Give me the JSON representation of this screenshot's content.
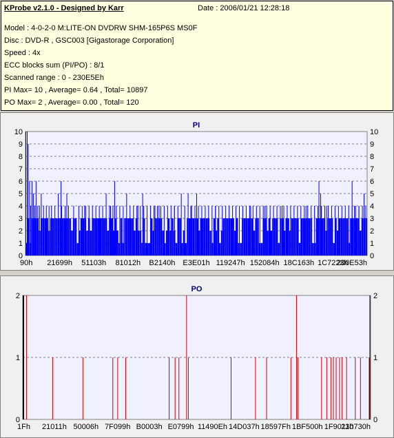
{
  "app_title": "KProbe v2.1.0 - Designed by Karr",
  "date": "Date : 2006/01/21 12:28:18",
  "info_lines": [
    "Model : 4-0-2-0 M:LITE-ON DVDRW SHM-165P6S MS0F",
    "Disc : DVD-R , GSC003 [Gigastorage Corporation]",
    "Speed : 4x",
    "ECC blocks sum (PI/PO) : 8/1",
    "Scanned range : 0 - 230E5Eh",
    "PI Max= 10 , Average= 0.64 , Total= 10897",
    "PO Max= 2 , Average= 0.00 , Total= 120"
  ],
  "colors": {
    "pi_bar": "#0000ff",
    "po_bar": "#cc0000",
    "plot_bg": "#f0f0ff",
    "title": "#000080"
  },
  "chart_data": [
    {
      "type": "bar",
      "title": "PI",
      "ylim": [
        0,
        10
      ],
      "yticks": [
        0,
        1,
        2,
        3,
        4,
        5,
        6,
        7,
        8,
        9,
        10
      ],
      "xtick_labels": [
        "90h",
        "21699h",
        "51103h",
        "81012h",
        "B2140h",
        "E3E01h",
        "119247h",
        "152084h",
        "18C163h",
        "1C7223h",
        "200E53h"
      ],
      "baseline_level": 3,
      "bars": [
        {
          "x": 0.0,
          "y": 10
        },
        {
          "x": 0.004,
          "y": 10
        },
        {
          "x": 0.007,
          "y": 9
        },
        {
          "x": 0.011,
          "y": 6
        },
        {
          "x": 0.014,
          "y": 4
        },
        {
          "x": 0.018,
          "y": 6
        },
        {
          "x": 0.022,
          "y": 5
        },
        {
          "x": 0.026,
          "y": 4
        },
        {
          "x": 0.03,
          "y": 6
        },
        {
          "x": 0.035,
          "y": 4
        },
        {
          "x": 0.04,
          "y": 4
        },
        {
          "x": 0.045,
          "y": 5
        },
        {
          "x": 0.052,
          "y": 4
        },
        {
          "x": 0.06,
          "y": 4
        },
        {
          "x": 0.068,
          "y": 4
        },
        {
          "x": 0.075,
          "y": 4
        },
        {
          "x": 0.085,
          "y": 4
        },
        {
          "x": 0.095,
          "y": 5
        },
        {
          "x": 0.105,
          "y": 4
        },
        {
          "x": 0.115,
          "y": 4
        },
        {
          "x": 0.125,
          "y": 4
        },
        {
          "x": 0.14,
          "y": 4
        },
        {
          "x": 0.155,
          "y": 4
        },
        {
          "x": 0.165,
          "y": 4
        },
        {
          "x": 0.175,
          "y": 4
        },
        {
          "x": 0.185,
          "y": 4
        },
        {
          "x": 0.195,
          "y": 4
        },
        {
          "x": 0.205,
          "y": 4
        },
        {
          "x": 0.215,
          "y": 4
        },
        {
          "x": 0.225,
          "y": 4
        },
        {
          "x": 0.235,
          "y": 5
        },
        {
          "x": 0.245,
          "y": 4
        },
        {
          "x": 0.255,
          "y": 4
        },
        {
          "x": 0.265,
          "y": 4
        },
        {
          "x": 0.275,
          "y": 4
        },
        {
          "x": 0.285,
          "y": 4
        },
        {
          "x": 0.295,
          "y": 5
        },
        {
          "x": 0.305,
          "y": 4
        },
        {
          "x": 0.315,
          "y": 4
        },
        {
          "x": 0.325,
          "y": 4
        },
        {
          "x": 0.335,
          "y": 4
        },
        {
          "x": 0.345,
          "y": 4
        },
        {
          "x": 0.355,
          "y": 4
        },
        {
          "x": 0.365,
          "y": 4
        },
        {
          "x": 0.375,
          "y": 4
        },
        {
          "x": 0.385,
          "y": 4
        },
        {
          "x": 0.395,
          "y": 4
        },
        {
          "x": 0.405,
          "y": 4
        },
        {
          "x": 0.415,
          "y": 4
        },
        {
          "x": 0.425,
          "y": 4
        },
        {
          "x": 0.435,
          "y": 4
        },
        {
          "x": 0.445,
          "y": 4
        },
        {
          "x": 0.455,
          "y": 5
        },
        {
          "x": 0.465,
          "y": 4
        },
        {
          "x": 0.475,
          "y": 5
        },
        {
          "x": 0.485,
          "y": 4
        },
        {
          "x": 0.495,
          "y": 4
        },
        {
          "x": 0.505,
          "y": 4
        },
        {
          "x": 0.515,
          "y": 4
        },
        {
          "x": 0.525,
          "y": 4
        },
        {
          "x": 0.535,
          "y": 4
        },
        {
          "x": 0.545,
          "y": 4
        },
        {
          "x": 0.555,
          "y": 4
        },
        {
          "x": 0.565,
          "y": 4
        },
        {
          "x": 0.575,
          "y": 4
        },
        {
          "x": 0.585,
          "y": 4
        },
        {
          "x": 0.595,
          "y": 4
        },
        {
          "x": 0.605,
          "y": 4
        },
        {
          "x": 0.615,
          "y": 4
        },
        {
          "x": 0.625,
          "y": 4
        },
        {
          "x": 0.635,
          "y": 4
        },
        {
          "x": 0.645,
          "y": 4
        },
        {
          "x": 0.655,
          "y": 4
        },
        {
          "x": 0.665,
          "y": 4
        },
        {
          "x": 0.675,
          "y": 4
        },
        {
          "x": 0.685,
          "y": 4
        },
        {
          "x": 0.695,
          "y": 4
        },
        {
          "x": 0.705,
          "y": 4
        },
        {
          "x": 0.715,
          "y": 4
        },
        {
          "x": 0.725,
          "y": 4
        },
        {
          "x": 0.735,
          "y": 4
        },
        {
          "x": 0.745,
          "y": 4
        },
        {
          "x": 0.755,
          "y": 4
        },
        {
          "x": 0.765,
          "y": 4
        },
        {
          "x": 0.775,
          "y": 4
        },
        {
          "x": 0.785,
          "y": 4
        },
        {
          "x": 0.795,
          "y": 4
        },
        {
          "x": 0.805,
          "y": 4
        },
        {
          "x": 0.815,
          "y": 4
        },
        {
          "x": 0.825,
          "y": 4
        },
        {
          "x": 0.835,
          "y": 4
        },
        {
          "x": 0.845,
          "y": 4
        },
        {
          "x": 0.855,
          "y": 4
        },
        {
          "x": 0.865,
          "y": 4
        },
        {
          "x": 0.875,
          "y": 4
        },
        {
          "x": 0.885,
          "y": 4
        },
        {
          "x": 0.895,
          "y": 4
        },
        {
          "x": 0.905,
          "y": 4
        },
        {
          "x": 0.915,
          "y": 4
        },
        {
          "x": 0.925,
          "y": 4
        },
        {
          "x": 0.935,
          "y": 4
        },
        {
          "x": 0.945,
          "y": 4
        },
        {
          "x": 0.955,
          "y": 4
        },
        {
          "x": 0.965,
          "y": 4
        },
        {
          "x": 0.975,
          "y": 4
        },
        {
          "x": 0.985,
          "y": 4
        },
        {
          "x": 0.995,
          "y": 4
        },
        {
          "x": 0.12,
          "y": 5
        },
        {
          "x": 0.172,
          "y": 4
        },
        {
          "x": 0.248,
          "y": 4
        },
        {
          "x": 0.328,
          "y": 4
        },
        {
          "x": 0.378,
          "y": 4
        },
        {
          "x": 0.39,
          "y": 4
        },
        {
          "x": 0.435,
          "y": 4
        },
        {
          "x": 0.5,
          "y": 5
        },
        {
          "x": 0.555,
          "y": 4
        },
        {
          "x": 0.658,
          "y": 4
        },
        {
          "x": 0.7,
          "y": 4
        },
        {
          "x": 0.75,
          "y": 4
        },
        {
          "x": 0.82,
          "y": 4
        },
        {
          "x": 0.858,
          "y": 6
        },
        {
          "x": 0.863,
          "y": 5
        },
        {
          "x": 0.88,
          "y": 4
        },
        {
          "x": 0.955,
          "y": 6
        },
        {
          "x": 0.962,
          "y": 4
        },
        {
          "x": 0.975,
          "y": 4
        },
        {
          "x": 0.99,
          "y": 5
        },
        {
          "x": 0.103,
          "y": 6
        },
        {
          "x": 0.26,
          "y": 6
        },
        {
          "x": 0.342,
          "y": 5
        },
        {
          "x": 0.483,
          "y": 4
        }
      ]
    },
    {
      "type": "bar",
      "title": "PO",
      "ylim": [
        0,
        2
      ],
      "yticks": [
        0,
        1,
        2
      ],
      "xtick_labels": [
        "1Fh",
        "21011h",
        "50006h",
        "7F099h",
        "B0003h",
        "E0799h",
        "11490Eh",
        "14D037h",
        "18597Fh",
        "1BF500h",
        "1F9011h",
        "230730h"
      ],
      "bars": [
        {
          "x": 0.0,
          "y": 2
        },
        {
          "x": 0.01,
          "y": 2
        },
        {
          "x": 0.085,
          "y": 1
        },
        {
          "x": 0.172,
          "y": 1
        },
        {
          "x": 0.258,
          "y": 1
        },
        {
          "x": 0.272,
          "y": 1
        },
        {
          "x": 0.295,
          "y": 1
        },
        {
          "x": 0.42,
          "y": 1
        },
        {
          "x": 0.437,
          "y": 1
        },
        {
          "x": 0.448,
          "y": 1
        },
        {
          "x": 0.47,
          "y": 2
        },
        {
          "x": 0.475,
          "y": 1
        },
        {
          "x": 0.598,
          "y": 1
        },
        {
          "x": 0.668,
          "y": 1
        },
        {
          "x": 0.7,
          "y": 1
        },
        {
          "x": 0.77,
          "y": 1
        },
        {
          "x": 0.786,
          "y": 2
        },
        {
          "x": 0.79,
          "y": 1
        },
        {
          "x": 0.858,
          "y": 1
        },
        {
          "x": 0.873,
          "y": 1
        },
        {
          "x": 0.885,
          "y": 1
        },
        {
          "x": 0.892,
          "y": 1
        },
        {
          "x": 0.9,
          "y": 1
        },
        {
          "x": 0.91,
          "y": 1
        },
        {
          "x": 0.917,
          "y": 1
        },
        {
          "x": 0.93,
          "y": 1
        },
        {
          "x": 0.955,
          "y": 1
        },
        {
          "x": 0.97,
          "y": 1
        },
        {
          "x": 0.995,
          "y": 1
        }
      ]
    }
  ]
}
